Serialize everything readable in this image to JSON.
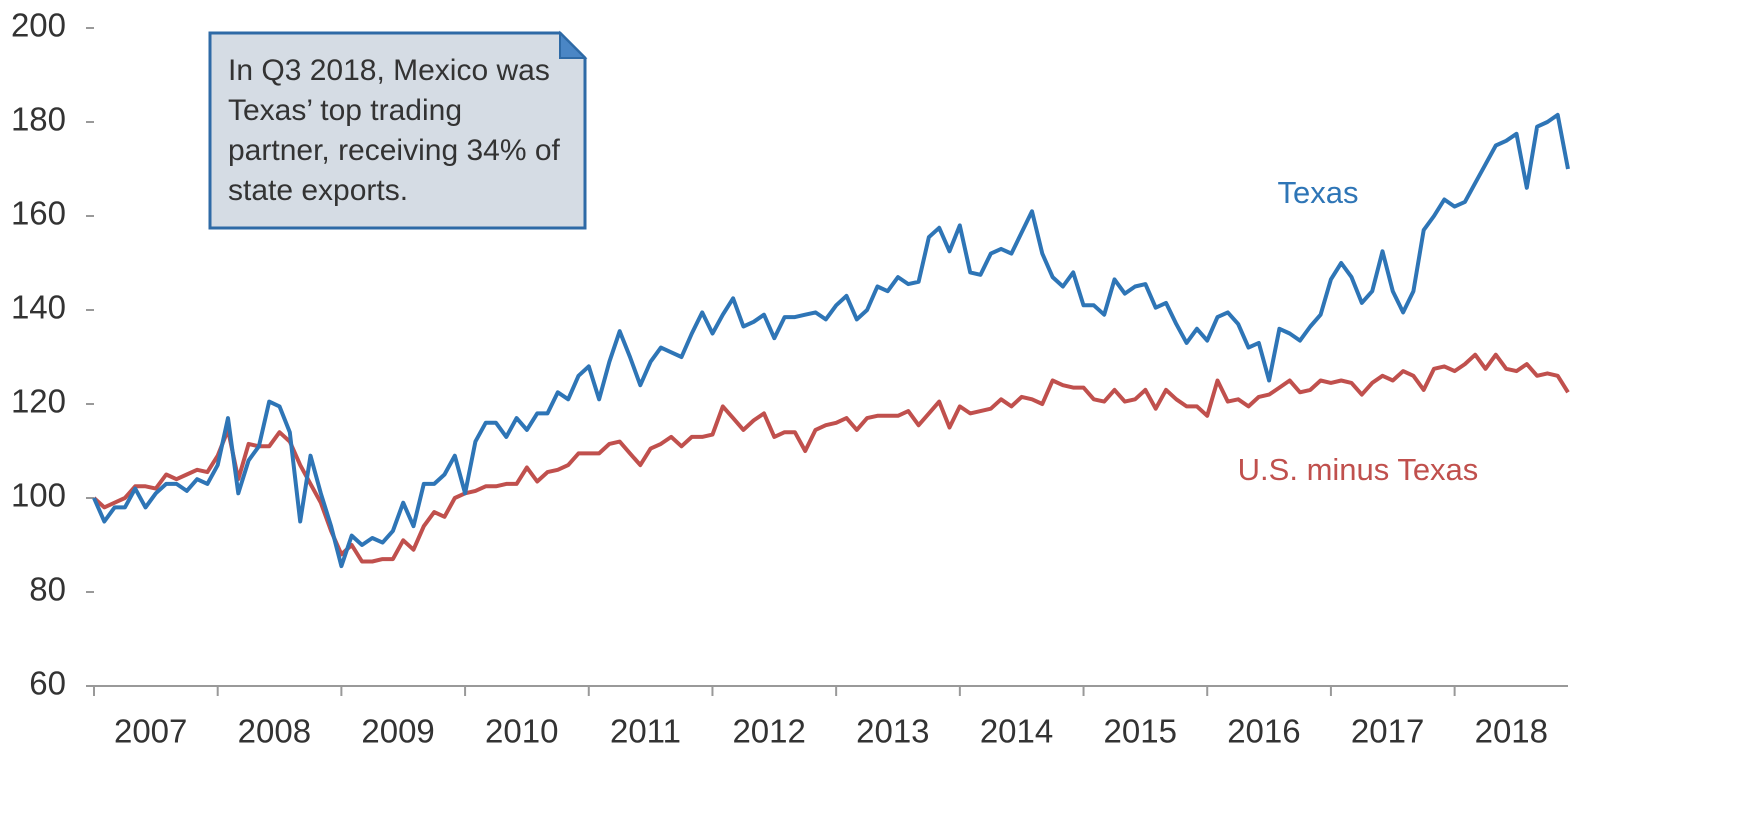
{
  "chart_data": {
    "type": "line",
    "annotation": [
      "In Q3 2018, Mexico was",
      "Texas’ top trading",
      "partner, receiving 34% of",
      "state exports."
    ],
    "categories": [
      null,
      null,
      null,
      null,
      null,
      null,
      "2007",
      null,
      null,
      null,
      null,
      null,
      null,
      null,
      null,
      null,
      null,
      null,
      "2008",
      null,
      null,
      null,
      null,
      null,
      null,
      null,
      null,
      null,
      null,
      null,
      "2009",
      null,
      null,
      null,
      null,
      null,
      null,
      null,
      null,
      null,
      null,
      null,
      "2010",
      null,
      null,
      null,
      null,
      null,
      null,
      null,
      null,
      null,
      null,
      null,
      "2011",
      null,
      null,
      null,
      null,
      null,
      null,
      null,
      null,
      null,
      null,
      null,
      "2012",
      null,
      null,
      null,
      null,
      null,
      null,
      null,
      null,
      null,
      null,
      null,
      "2013",
      null,
      null,
      null,
      null,
      null,
      null,
      null,
      null,
      null,
      null,
      null,
      "2014",
      null,
      null,
      null,
      null,
      null,
      null,
      null,
      null,
      null,
      null,
      null,
      "2015",
      null,
      null,
      null,
      null,
      null,
      null,
      null,
      null,
      null,
      null,
      null,
      "2016",
      null,
      null,
      null,
      null,
      null,
      null,
      null,
      null,
      null,
      null,
      null,
      "2017",
      null,
      null,
      null,
      null,
      null,
      null,
      null,
      null,
      null,
      null,
      null,
      "2018",
      null,
      null,
      null,
      null,
      null
    ],
    "series": [
      {
        "name": "Texas",
        "color": "#2e75b6",
        "values": [
          100,
          95,
          98,
          98,
          102,
          98,
          101,
          103,
          103,
          101.5,
          104,
          103,
          107,
          117,
          101,
          108,
          111,
          120.5,
          119.5,
          114,
          95,
          109,
          101,
          94,
          85.5,
          92,
          90,
          91.5,
          90.5,
          93,
          99,
          94,
          103,
          103,
          105,
          109,
          101,
          112,
          116,
          116,
          113,
          117,
          114.5,
          118,
          118,
          122.5,
          121,
          126,
          128,
          121,
          129,
          135.5,
          130,
          124,
          129,
          132,
          131,
          130,
          135,
          139.5,
          135,
          139,
          142.5,
          136.5,
          137.5,
          139,
          134,
          138.5,
          138.5,
          139,
          139.5,
          138,
          141,
          143,
          138,
          140,
          145,
          144,
          147,
          145.5,
          146,
          155.5,
          157.5,
          152.5,
          158,
          148,
          147.5,
          152,
          153,
          152,
          156.5,
          161,
          152,
          147,
          145,
          148,
          141,
          141,
          139,
          146.5,
          143.5,
          145,
          145.5,
          140.5,
          141.5,
          137,
          133,
          136,
          133.5,
          138.5,
          139.5,
          137,
          132,
          133,
          125,
          136,
          135,
          133.5,
          136.5,
          139,
          146.5,
          150,
          147,
          141.5,
          144,
          152.5,
          144,
          139.5,
          144,
          157,
          160,
          163.5,
          162,
          163,
          167,
          171,
          175,
          176,
          177.5,
          166,
          179,
          180,
          181.5,
          170
        ]
      },
      {
        "name": "U.S. minus Texas",
        "color": "#c0504d",
        "values": [
          100,
          98,
          99,
          100,
          102.5,
          102.5,
          102,
          105,
          104,
          105,
          106,
          105.5,
          109,
          114.5,
          104,
          111.5,
          111,
          111,
          114,
          112,
          107,
          103,
          99,
          93,
          88,
          90,
          86.5,
          86.5,
          87,
          87,
          91,
          89,
          94,
          97,
          96,
          100,
          101,
          101.5,
          102.5,
          102.5,
          103,
          103,
          106.5,
          103.5,
          105.5,
          106,
          107,
          109.5,
          109.5,
          109.5,
          111.5,
          112,
          109.5,
          107,
          110.5,
          111.5,
          113,
          111,
          113,
          113,
          113.5,
          119.5,
          117,
          114.5,
          116.5,
          118,
          113,
          114,
          114,
          110,
          114.5,
          115.5,
          116,
          117,
          114.5,
          117,
          117.5,
          117.5,
          117.5,
          118.5,
          115.5,
          118,
          120.5,
          115,
          119.5,
          118,
          118.5,
          119,
          121,
          119.5,
          121.5,
          121,
          120,
          125,
          124,
          123.5,
          123.5,
          121,
          120.5,
          123,
          120.5,
          121,
          123,
          119,
          123,
          121,
          119.5,
          119.5,
          117.5,
          125,
          120.5,
          121,
          119.5,
          121.5,
          122,
          123.5,
          125,
          122.5,
          123,
          125,
          124.5,
          125,
          124.5,
          122,
          124.5,
          126,
          125,
          127,
          126,
          123,
          127.5,
          128,
          127,
          128.5,
          130.5,
          127.5,
          130.5,
          127.5,
          127,
          128.5,
          126,
          126.5,
          126,
          122.5
        ]
      }
    ],
    "ylim": [
      60,
      200
    ],
    "yticks": [
      60,
      80,
      100,
      120,
      140,
      160,
      180,
      200
    ]
  }
}
